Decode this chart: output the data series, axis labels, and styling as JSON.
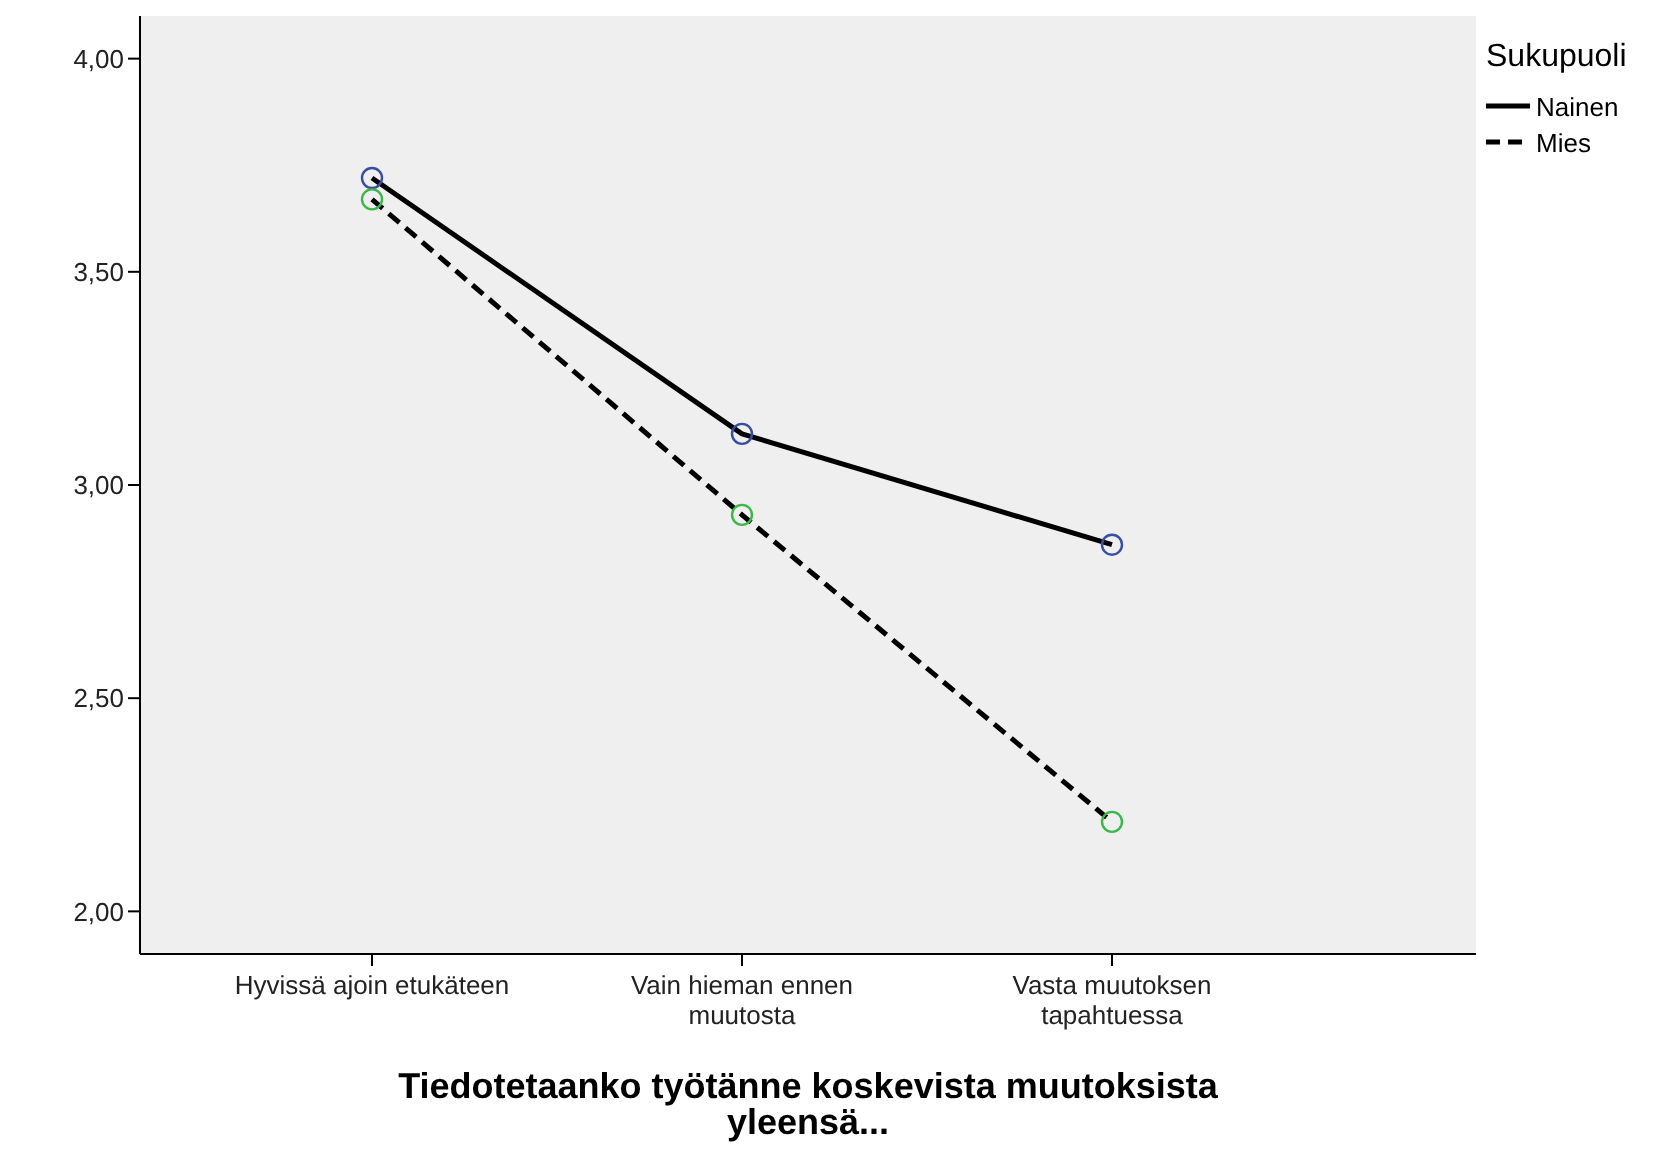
{
  "chart_data": {
    "type": "line",
    "xlabel": "Tiedotetaanko työtänne koskevista muutoksista yleensä...",
    "legend_title": "Sukupuoli",
    "categories": [
      "Hyvissä ajoin etukäteen",
      "Vain hieman ennen muutosta",
      "Vasta muutoksen tapahtuessa"
    ],
    "series": [
      {
        "name": "Nainen",
        "color": "#000000",
        "colors": [
          "#3a4ea0",
          "#3a4ea0",
          "#3a4ea0"
        ],
        "line_style": "solid",
        "values": [
          3.72,
          3.12,
          2.86
        ]
      },
      {
        "name": "Mies",
        "color": "#000000",
        "colors": [
          "#3cb84a",
          "#3cb84a",
          "#3cb84a"
        ],
        "line_style": "dashed",
        "values": [
          3.67,
          2.93,
          2.21
        ]
      }
    ],
    "ylim": [
      1.9,
      4.1
    ],
    "yticks": [
      {
        "value": 2,
        "label": "2,00"
      },
      {
        "value": 2.5,
        "label": "2,50"
      },
      {
        "value": 3,
        "label": "3,00"
      },
      {
        "value": 3.5,
        "label": "3,50"
      },
      {
        "value": 4,
        "label": "4,00"
      }
    ],
    "grid": false,
    "legend": "top right",
    "marker": "circle"
  }
}
